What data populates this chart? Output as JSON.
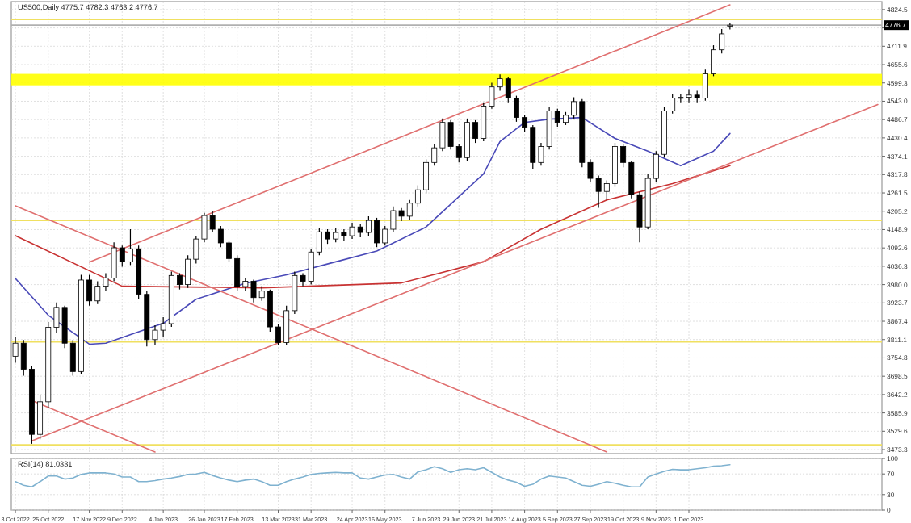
{
  "chart_data": [
    {
      "type": "candlestick",
      "title": "US500,Daily  4775.7 4782.3 4763.2 4776.7",
      "tick_labels": "y",
      "grid": true,
      "categories": [
        null,
        null,
        null,
        null,
        null,
        null,
        null,
        null,
        null,
        null,
        null,
        null,
        null,
        null,
        null,
        null,
        null,
        null,
        null,
        null,
        null,
        null,
        null,
        null,
        null,
        null,
        null,
        null,
        null,
        null,
        null,
        null,
        null,
        null,
        null,
        null,
        null,
        null,
        null,
        null,
        null,
        null,
        null,
        null,
        null,
        null,
        null,
        null,
        null,
        null,
        null,
        null,
        null,
        null,
        null,
        null,
        null,
        null,
        null,
        null,
        null,
        null,
        null,
        null,
        null,
        null,
        null,
        null,
        null,
        null,
        null,
        null,
        null,
        null,
        null,
        null,
        null,
        null,
        null,
        null,
        null,
        null,
        null,
        null,
        null,
        null,
        null,
        null,
        null,
        null,
        null,
        null,
        null,
        null,
        null,
        null,
        null,
        null,
        null,
        null,
        null,
        null,
        null,
        null,
        null,
        null
      ],
      "ylim": [
        3461,
        4849
      ],
      "yticks": [
        3473.3,
        3529.6,
        3585.9,
        3642.2,
        3698.5,
        3754.8,
        3811.1,
        3867.4,
        3923.7,
        {
          "value": 3980,
          "label": "3980.0"
        },
        4036.3,
        4092.6,
        4148.9,
        4205.2,
        4261.5,
        4317.8,
        4374.1,
        4430.4,
        4486.7,
        {
          "value": 4543,
          "label": "4543.0"
        },
        4599.3,
        4655.6,
        4711.9,
        {
          "value": 4768.2,
          "label": null
        },
        4824.5
      ],
      "ohlc": [
        [
          3760,
          3820,
          3740,
          3800
        ],
        [
          3800,
          3810,
          3700,
          3720
        ],
        [
          3720,
          3730,
          3491,
          3520
        ],
        [
          3520,
          3640,
          3505,
          3620
        ],
        [
          3620,
          3865,
          3600,
          3849
        ],
        [
          3849,
          3925,
          3830,
          3910
        ],
        [
          3910,
          3915,
          3785,
          3800
        ],
        [
          3800,
          3810,
          3700,
          3713
        ],
        [
          3713,
          4010,
          3705,
          3994
        ],
        [
          3994,
          4010,
          3915,
          3930
        ],
        [
          3930,
          3990,
          3920,
          3975
        ],
        [
          3975,
          4015,
          3960,
          4000
        ],
        [
          4000,
          4110,
          3990,
          4093
        ],
        [
          4093,
          4100,
          4035,
          4050
        ],
        [
          4050,
          4150,
          4040,
          4090
        ],
        [
          4090,
          4100,
          3935,
          3950
        ],
        [
          3950,
          3960,
          3790,
          3811
        ],
        [
          3811,
          3855,
          3795,
          3840
        ],
        [
          3840,
          3880,
          3820,
          3860
        ],
        [
          3860,
          4020,
          3850,
          4008
        ],
        [
          4008,
          4015,
          3965,
          3980
        ],
        [
          3980,
          4070,
          3970,
          4058
        ],
        [
          4058,
          4130,
          4045,
          4120
        ],
        [
          4120,
          4200,
          4110,
          4192
        ],
        [
          4192,
          4205,
          4140,
          4150
        ],
        [
          4150,
          4160,
          4095,
          4108
        ],
        [
          4108,
          4115,
          4050,
          4060
        ],
        [
          4060,
          4070,
          3960,
          3974
        ],
        [
          3974,
          4000,
          3960,
          3990
        ],
        [
          3990,
          3995,
          3925,
          3940
        ],
        [
          3940,
          3975,
          3930,
          3960
        ],
        [
          3960,
          3965,
          3835,
          3850
        ],
        [
          3850,
          3860,
          3795,
          3802
        ],
        [
          3802,
          3915,
          3795,
          3900
        ],
        [
          3900,
          4020,
          3890,
          4008
        ],
        [
          4008,
          4015,
          3975,
          3990
        ],
        [
          3990,
          4090,
          3980,
          4080
        ],
        [
          4080,
          4155,
          4070,
          4142
        ],
        [
          4142,
          4150,
          4105,
          4120
        ],
        [
          4120,
          4155,
          4110,
          4140
        ],
        [
          4140,
          4150,
          4115,
          4130
        ],
        [
          4130,
          4170,
          4120,
          4157
        ],
        [
          4157,
          4165,
          4125,
          4140
        ],
        [
          4140,
          4190,
          4130,
          4177
        ],
        [
          4177,
          4185,
          4095,
          4108
        ],
        [
          4108,
          4160,
          4100,
          4150
        ],
        [
          4150,
          4220,
          4140,
          4207
        ],
        [
          4207,
          4215,
          4175,
          4190
        ],
        [
          4190,
          4240,
          4180,
          4230
        ],
        [
          4230,
          4285,
          4220,
          4271
        ],
        [
          4271,
          4365,
          4260,
          4355
        ],
        [
          4355,
          4410,
          4345,
          4400
        ],
        [
          4400,
          4490,
          4390,
          4478
        ],
        [
          4478,
          4485,
          4395,
          4404
        ],
        [
          4404,
          4410,
          4355,
          4370
        ],
        [
          4370,
          4490,
          4360,
          4478
        ],
        [
          4478,
          4485,
          4415,
          4429
        ],
        [
          4429,
          4540,
          4420,
          4528
        ],
        [
          4528,
          4600,
          4520,
          4587
        ],
        [
          4587,
          4625,
          4575,
          4612
        ],
        [
          4612,
          4618,
          4540,
          4553
        ],
        [
          4553,
          4560,
          4480,
          4493
        ],
        [
          4493,
          4500,
          4450,
          4463
        ],
        [
          4463,
          4470,
          4335,
          4355
        ],
        [
          4355,
          4415,
          4345,
          4404
        ],
        [
          4404,
          4525,
          4395,
          4513
        ],
        [
          4513,
          4520,
          4465,
          4478
        ],
        [
          4478,
          4510,
          4470,
          4500
        ],
        [
          4500,
          4555,
          4490,
          4542
        ],
        [
          4542,
          4550,
          4340,
          4355
        ],
        [
          4355,
          4365,
          4295,
          4306
        ],
        [
          4306,
          4315,
          4216,
          4266
        ],
        [
          4266,
          4300,
          4240,
          4290
        ],
        [
          4290,
          4415,
          4280,
          4404
        ],
        [
          4404,
          4410,
          4340,
          4355
        ],
        [
          4355,
          4360,
          4245,
          4256
        ],
        [
          4256,
          4265,
          4110,
          4157
        ],
        [
          4157,
          4320,
          4150,
          4306
        ],
        [
          4306,
          4390,
          4295,
          4380
        ],
        [
          4380,
          4525,
          4370,
          4513
        ],
        [
          4513,
          4565,
          4505,
          4553
        ],
        [
          4553,
          4565,
          4540,
          4555
        ],
        [
          4555,
          4580,
          4540,
          4562
        ],
        [
          4562,
          4575,
          4540,
          4553
        ],
        [
          4553,
          4640,
          4545,
          4627
        ],
        [
          4627,
          4715,
          4620,
          4701
        ],
        [
          4701,
          4765,
          4690,
          4750
        ],
        [
          4775.7,
          4782.3,
          4763.2,
          4776.7
        ],
        null,
        null,
        null,
        null,
        null,
        null,
        null,
        null,
        null,
        null,
        null,
        null,
        null,
        null,
        null,
        null,
        null,
        null
      ],
      "series": [
        {
          "type": "line",
          "color": "#4a4ab8",
          "values": [
            3999,
            null,
            null,
            null,
            3886,
            null,
            null,
            null,
            null,
            3797,
            null,
            3800,
            null,
            null,
            null,
            null,
            null,
            null,
            3861,
            null,
            null,
            null,
            3935,
            null,
            null,
            null,
            null,
            null,
            3984,
            null,
            null,
            null,
            null,
            4010,
            null,
            null,
            null,
            null,
            null,
            4050,
            null,
            null,
            null,
            null,
            4083,
            null,
            null,
            null,
            null,
            null,
            4157,
            null,
            null,
            null,
            null,
            null,
            null,
            4320,
            null,
            4419,
            null,
            null,
            4478,
            null,
            null,
            4488,
            null,
            null,
            null,
            4493,
            null,
            null,
            null,
            4429,
            null,
            null,
            null,
            4390,
            null,
            null,
            null,
            4345,
            null,
            null,
            null,
            4390,
            null,
            4444,
            null,
            null,
            null,
            null,
            null,
            null,
            null,
            null,
            null,
            null,
            null,
            null,
            null,
            null,
            null,
            null,
            null,
            null
          ]
        },
        {
          "type": "line",
          "color": "#c83232",
          "values": [
            4130,
            null,
            null,
            null,
            null,
            null,
            null,
            null,
            null,
            null,
            null,
            null,
            null,
            3975,
            null,
            null,
            null,
            null,
            null,
            null,
            null,
            null,
            null,
            null,
            null,
            null,
            null,
            null,
            null,
            null,
            3970,
            null,
            null,
            null,
            null,
            null,
            null,
            null,
            null,
            null,
            null,
            null,
            null,
            null,
            null,
            null,
            null,
            3985,
            null,
            null,
            null,
            null,
            null,
            null,
            null,
            null,
            null,
            4050,
            null,
            null,
            null,
            null,
            null,
            null,
            4150,
            null,
            null,
            null,
            null,
            null,
            null,
            null,
            4240,
            null,
            null,
            null,
            null,
            null,
            null,
            null,
            4290,
            null,
            null,
            null,
            null,
            null,
            null,
            4345,
            null,
            null,
            null,
            null,
            null,
            null,
            null,
            null,
            null,
            null,
            null,
            null,
            null,
            null,
            null,
            null,
            null,
            null
          ]
        },
        {
          "type": "line",
          "color": "#e07070",
          "values": [
            null,
            null,
            null,
            null,
            null,
            null,
            null,
            null,
            null,
            4049,
            null,
            null,
            null,
            null,
            null,
            null,
            null,
            null,
            null,
            null,
            null,
            null,
            null,
            null,
            null,
            null,
            null,
            null,
            null,
            null,
            null,
            null,
            null,
            null,
            null,
            null,
            null,
            null,
            null,
            null,
            null,
            null,
            null,
            null,
            null,
            null,
            null,
            null,
            null,
            null,
            null,
            null,
            null,
            null,
            null,
            null,
            null,
            null,
            null,
            null,
            null,
            null,
            null,
            null,
            null,
            null,
            null,
            null,
            null,
            null,
            null,
            null,
            null,
            null,
            null,
            null,
            null,
            null,
            null,
            null,
            null,
            null,
            null,
            null,
            null,
            null,
            null,
            4839,
            null,
            null,
            null,
            null,
            null,
            null,
            null,
            null,
            null,
            null,
            null,
            null,
            null,
            null,
            null,
            null,
            null,
            null
          ]
        },
        {
          "type": "line",
          "color": "#e07070",
          "values": [
            null,
            null,
            3500,
            null,
            null,
            null,
            null,
            null,
            null,
            null,
            null,
            null,
            null,
            null,
            null,
            null,
            null,
            null,
            null,
            null,
            null,
            null,
            null,
            null,
            null,
            null,
            null,
            null,
            null,
            null,
            null,
            null,
            null,
            null,
            null,
            null,
            null,
            null,
            null,
            null,
            null,
            null,
            null,
            null,
            null,
            null,
            null,
            null,
            null,
            null,
            null,
            null,
            null,
            null,
            null,
            null,
            null,
            null,
            null,
            null,
            null,
            null,
            null,
            null,
            null,
            null,
            null,
            null,
            null,
            null,
            null,
            null,
            null,
            null,
            null,
            null,
            null,
            null,
            null,
            null,
            null,
            null,
            null,
            null,
            null,
            null,
            null,
            null,
            null,
            null,
            null,
            null,
            null,
            null,
            null,
            null,
            null,
            null,
            null,
            null,
            null,
            null,
            null,
            null,
            null,
            4533
          ]
        },
        {
          "type": "line",
          "color": "#e07070",
          "values": [
            4222,
            null,
            null,
            null,
            null,
            null,
            null,
            null,
            null,
            null,
            null,
            null,
            null,
            null,
            null,
            null,
            null,
            null,
            null,
            null,
            null,
            null,
            null,
            null,
            null,
            null,
            null,
            null,
            null,
            null,
            null,
            null,
            null,
            null,
            null,
            null,
            null,
            null,
            null,
            null,
            null,
            null,
            null,
            null,
            null,
            null,
            null,
            null,
            null,
            null,
            null,
            null,
            null,
            null,
            null,
            null,
            null,
            null,
            null,
            null,
            null,
            null,
            null,
            null,
            null,
            null,
            null,
            null,
            null,
            null,
            null,
            null,
            3466,
            null,
            null,
            null,
            null,
            null,
            null,
            null,
            null,
            null,
            null,
            null,
            null,
            null,
            null,
            null,
            null,
            null,
            null,
            null,
            null,
            null,
            null,
            null,
            null,
            null,
            null,
            null,
            null,
            null,
            null,
            null,
            null,
            null
          ]
        },
        {
          "type": "line",
          "color": "#e07070",
          "values": [
            null,
            null,
            3624,
            null,
            null,
            null,
            null,
            null,
            null,
            null,
            null,
            null,
            null,
            null,
            null,
            null,
            null,
            3466,
            null,
            null,
            null,
            null,
            null,
            null,
            null,
            null,
            null,
            null,
            null,
            null,
            null,
            null,
            null,
            null,
            null,
            null,
            null,
            null,
            null,
            null,
            null,
            null,
            null,
            null,
            null,
            null,
            null,
            null,
            null,
            null,
            null,
            null,
            null,
            null,
            null,
            null,
            null,
            null,
            null,
            null,
            null,
            null,
            null,
            null,
            null,
            null,
            null,
            null,
            null,
            null,
            null,
            null,
            null,
            null,
            null,
            null,
            null,
            null,
            null,
            null,
            null,
            null,
            null,
            null,
            null,
            null,
            null,
            null,
            null,
            null,
            null,
            null,
            null,
            null,
            null,
            null,
            null,
            null,
            null,
            null,
            null,
            null,
            null,
            null,
            null,
            null
          ]
        }
      ],
      "ref_lines": [
        {
          "axis": "y",
          "value": 4794,
          "color": "#f0e060"
        },
        {
          "axis": "y",
          "value": 4177,
          "color": "#f0e060"
        },
        {
          "axis": "y",
          "value": 3804,
          "color": "#f0e060"
        },
        {
          "axis": "y",
          "value": 3488,
          "color": "#f0e060"
        },
        {
          "axis": "y",
          "value": 4776.7,
          "label": "4776.7",
          "color": "#b0b0b0"
        }
      ],
      "bands": [
        {
          "axis": "y",
          "from": 4592,
          "to": 4627,
          "color": "#ffff00"
        }
      ]
    },
    {
      "type": "line",
      "title": "RSI(14) 81.0331",
      "grid": true,
      "categories": [
        "3 Oct 2022",
        null,
        null,
        null,
        "25 Oct 2022",
        null,
        null,
        null,
        null,
        "17 Nov 2022",
        null,
        null,
        null,
        "9 Dec 2022",
        null,
        null,
        null,
        null,
        "4 Jan 2023",
        null,
        null,
        null,
        null,
        "26 Jan 2023",
        null,
        null,
        null,
        "17 Feb 2023",
        null,
        null,
        null,
        null,
        "13 Mar 2023",
        null,
        null,
        null,
        "31 Mar 2023",
        null,
        null,
        null,
        null,
        "24 Apr 2023",
        null,
        null,
        null,
        "16 May 2023",
        null,
        null,
        null,
        null,
        "7 Jun 2023",
        null,
        null,
        null,
        "29 Jun 2023",
        null,
        null,
        null,
        "21 Jul 2023",
        null,
        null,
        null,
        "14 Aug 2023",
        null,
        null,
        null,
        "5 Sep 2023",
        null,
        null,
        null,
        "27 Sep 2023",
        null,
        null,
        null,
        "19 Oct 2023",
        null,
        null,
        null,
        "9 Nov 2023",
        null,
        null,
        null,
        "1 Dec 2023",
        null,
        null,
        null,
        null,
        null,
        null,
        null,
        null,
        null,
        null,
        null,
        null,
        null,
        null,
        null,
        null,
        null,
        null,
        null,
        null,
        null,
        null,
        null
      ],
      "ylim": [
        0,
        100
      ],
      "yticks": [
        0,
        30,
        70,
        100
      ],
      "series": [
        {
          "color": "#7fb2d0",
          "values": [
            55,
            48,
            45,
            55,
            66,
            66,
            60,
            62,
            69,
            72,
            72,
            72,
            70,
            64,
            64,
            55,
            55,
            57,
            60,
            62,
            65,
            69,
            70,
            73,
            67,
            62,
            58,
            55,
            58,
            60,
            55,
            48,
            48,
            55,
            60,
            64,
            69,
            71,
            72,
            73,
            72,
            72,
            62,
            60,
            64,
            68,
            69,
            64,
            60,
            74,
            78,
            84,
            80,
            73,
            78,
            80,
            78,
            82,
            73,
            64,
            58,
            54,
            46,
            50,
            60,
            66,
            64,
            62,
            55,
            48,
            46,
            50,
            55,
            52,
            48,
            45,
            45,
            64,
            70,
            75,
            79,
            78,
            78,
            80,
            82,
            85,
            86,
            88,
            null,
            null,
            null,
            null,
            null,
            null,
            null,
            null,
            null,
            null,
            null,
            null,
            null,
            null,
            null,
            null,
            null,
            null
          ]
        }
      ]
    }
  ]
}
